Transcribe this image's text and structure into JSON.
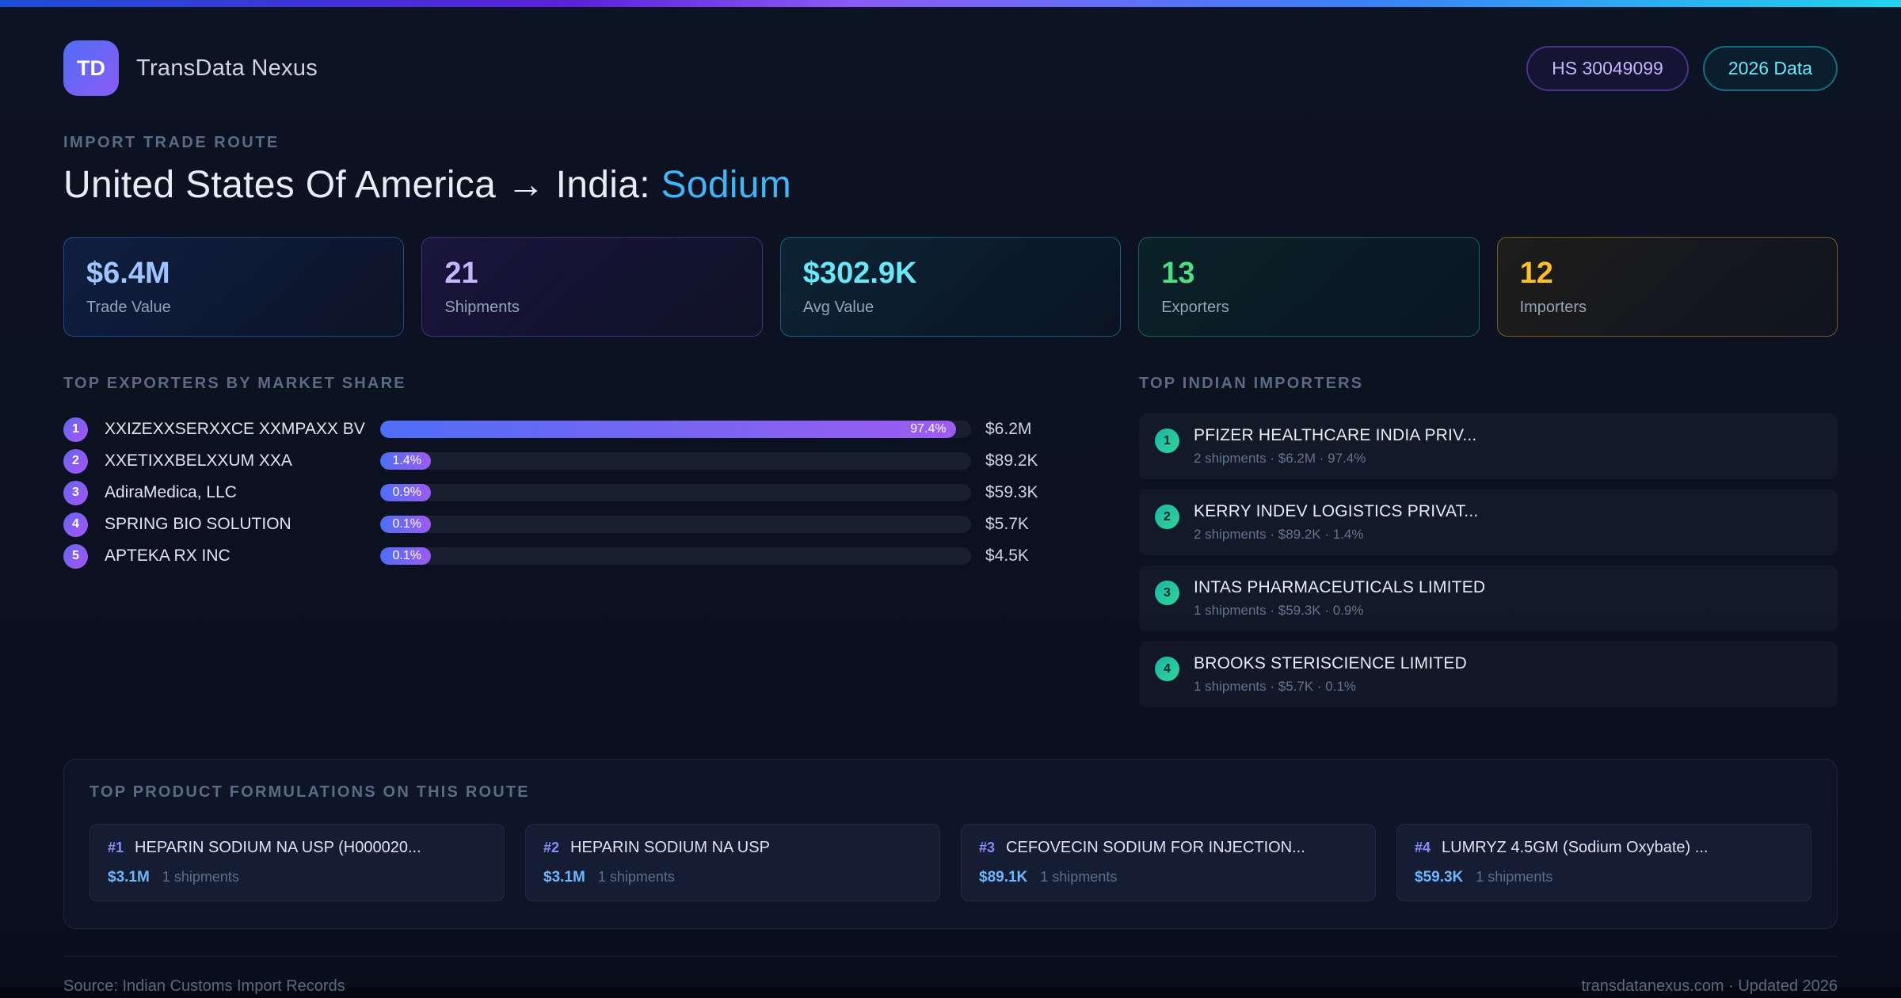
{
  "header": {
    "logo": "TD",
    "app_name": "TransData Nexus",
    "badge_hs": "HS 30049099",
    "badge_year": "2026 Data"
  },
  "hero": {
    "eyebrow": "IMPORT TRADE ROUTE",
    "title_prefix": "United States Of America → India: ",
    "title_highlight": "Sodium"
  },
  "stats": [
    {
      "value": "$6.4M",
      "label": "Trade Value"
    },
    {
      "value": "21",
      "label": "Shipments"
    },
    {
      "value": "$302.9K",
      "label": "Avg Value"
    },
    {
      "value": "13",
      "label": "Exporters"
    },
    {
      "value": "12",
      "label": "Importers"
    }
  ],
  "exporters": {
    "heading": "TOP EXPORTERS BY MARKET SHARE",
    "rows": [
      {
        "rank": "1",
        "name": "XXIZEXXSERXXCE XXMPAXX BV",
        "share": "97.4%",
        "width": "97.4%",
        "value": "$6.2M"
      },
      {
        "rank": "2",
        "name": "XXETIXXBELXXUM XXA",
        "share": "1.4%",
        "width": "1.4%",
        "value": "$89.2K"
      },
      {
        "rank": "3",
        "name": "AdiraMedica, LLC",
        "share": "0.9%",
        "width": "0.9%",
        "value": "$59.3K"
      },
      {
        "rank": "4",
        "name": "SPRING BIO SOLUTION",
        "share": "0.1%",
        "width": "0.1%",
        "value": "$5.7K"
      },
      {
        "rank": "5",
        "name": "APTEKA RX INC",
        "share": "0.1%",
        "width": "0.1%",
        "value": "$4.5K"
      }
    ]
  },
  "importers": {
    "heading": "TOP INDIAN IMPORTERS",
    "rows": [
      {
        "rank": "1",
        "name": "PFIZER HEALTHCARE INDIA PRIV...",
        "meta": "2 shipments · $6.2M · 97.4%"
      },
      {
        "rank": "2",
        "name": "KERRY INDEV LOGISTICS PRIVAT...",
        "meta": "2 shipments · $89.2K · 1.4%"
      },
      {
        "rank": "3",
        "name": "INTAS PHARMACEUTICALS LIMITED",
        "meta": "1 shipments · $59.3K · 0.9%"
      },
      {
        "rank": "4",
        "name": "BROOKS STERISCIENCE LIMITED",
        "meta": "1 shipments · $5.7K · 0.1%"
      }
    ]
  },
  "products": {
    "heading": "TOP PRODUCT FORMULATIONS ON THIS ROUTE",
    "cards": [
      {
        "rank": "#1",
        "name": "HEPARIN SODIUM NA USP (H000020...",
        "value": "$3.1M",
        "shipments": "1 shipments"
      },
      {
        "rank": "#2",
        "name": "HEPARIN SODIUM NA USP",
        "value": "$3.1M",
        "shipments": "1 shipments"
      },
      {
        "rank": "#3",
        "name": "CEFOVECIN SODIUM FOR INJECTION...",
        "value": "$89.1K",
        "shipments": "1 shipments"
      },
      {
        "rank": "#4",
        "name": "LUMRYZ 4.5GM (Sodium Oxybate) ...",
        "value": "$59.3K",
        "shipments": "1 shipments"
      }
    ]
  },
  "footer": {
    "source": "Source: Indian Customs Import Records",
    "site": "transdatanexus.com · Updated 2026"
  }
}
